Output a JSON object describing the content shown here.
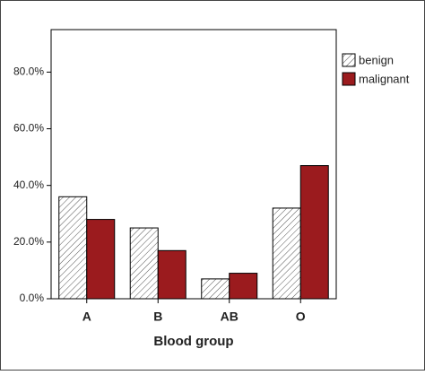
{
  "chart_data": {
    "type": "bar",
    "x_label": "Blood group",
    "categories": [
      "A",
      "B",
      "AB",
      "O"
    ],
    "series": [
      {
        "name": "benign",
        "color": "#ffffff",
        "hatch": true,
        "values": [
          36,
          25,
          7,
          32
        ]
      },
      {
        "name": "malignant",
        "color": "#9b1b1e",
        "hatch": false,
        "values": [
          28,
          17,
          9,
          47
        ]
      }
    ],
    "ylim": [
      0,
      95
    ],
    "yticks": [
      {
        "value": 0,
        "label": "0.0%"
      },
      {
        "value": 20,
        "label": "20.0%"
      },
      {
        "value": 40,
        "label": "40.0%"
      },
      {
        "value": 60,
        "label": "60.0%"
      },
      {
        "value": 80,
        "label": "80.0%"
      }
    ],
    "legend": "top right"
  }
}
